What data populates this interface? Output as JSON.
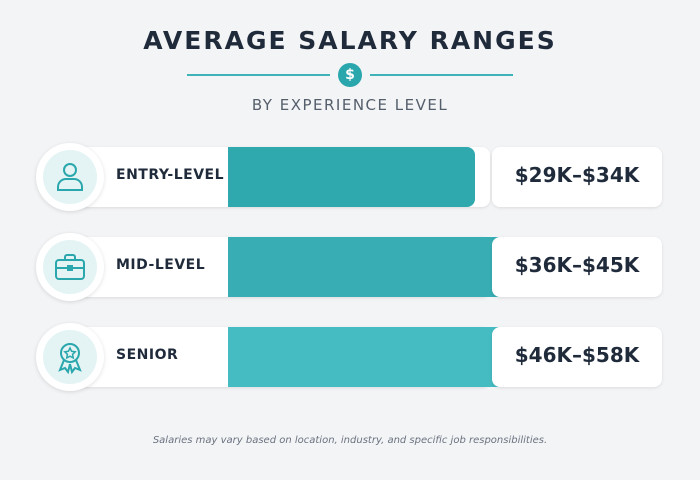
{
  "header": {
    "title": "AVERAGE SALARY RANGES",
    "subtitle": "BY EXPERIENCE LEVEL",
    "divider_icon": "dollar-icon",
    "divider_symbol": "$"
  },
  "colors": {
    "accent": "#2aa7ad",
    "bars": [
      "#2fa8ae",
      "#38aeb4",
      "#45bcc2"
    ]
  },
  "chart_data": {
    "type": "bar",
    "orientation": "horizontal",
    "title": "AVERAGE SALARY RANGES",
    "subtitle": "BY EXPERIENCE LEVEL",
    "categories": [
      "ENTRY-LEVEL",
      "MID-LEVEL",
      "SENIOR"
    ],
    "value_labels": [
      "$29K–$34K",
      "$36K–$45K",
      "$46K–$58K"
    ],
    "ranges": [
      [
        29,
        34
      ],
      [
        36,
        45
      ],
      [
        46,
        58
      ]
    ],
    "units": "thousand USD",
    "icons": [
      "user-icon",
      "briefcase-icon",
      "award-badge-icon"
    ],
    "legend": "none",
    "grid": false
  },
  "footnote": "Salaries may vary based on location, industry, and specific job responsibilities."
}
